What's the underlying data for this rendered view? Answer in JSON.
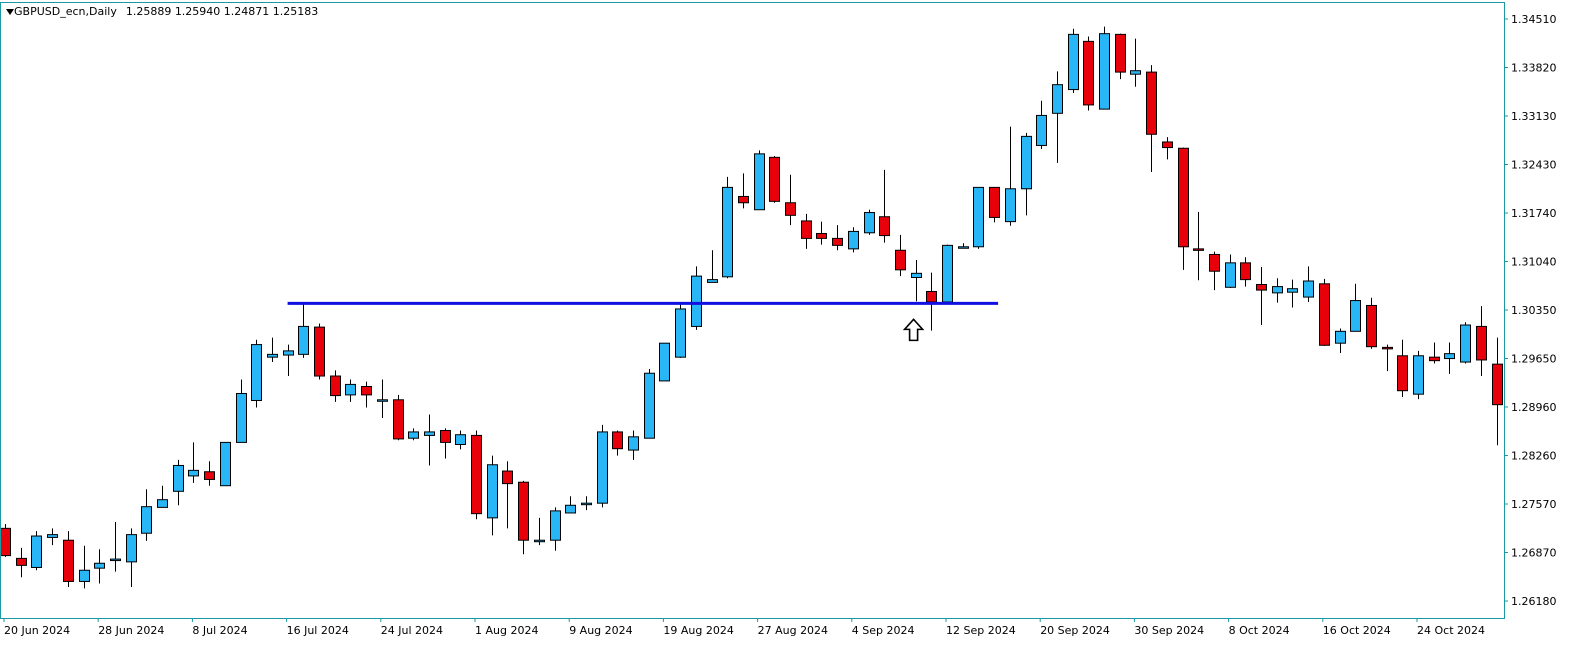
{
  "header": {
    "symbol": "GBPUSD_ecn,Daily",
    "ohlc": "1.25889 1.25940 1.24871 1.25183"
  },
  "colors": {
    "bull": "#29b6f6",
    "bear": "#e8000b",
    "wick": "#000000",
    "axis": "#1a9aa0",
    "level_line": "#1010e0",
    "background": "#ffffff"
  },
  "chart_data": {
    "type": "candlestick",
    "symbol": "GBPUSD_ecn",
    "timeframe": "Daily",
    "y_ticks": [
      "1.34510",
      "1.33820",
      "1.33130",
      "1.32430",
      "1.31740",
      "1.31040",
      "1.30350",
      "1.29650",
      "1.28960",
      "1.28260",
      "1.27570",
      "1.26870",
      "1.26180"
    ],
    "x_ticks": [
      "20 Jun 2024",
      "28 Jun 2024",
      "8 Jul 2024",
      "16 Jul 2024",
      "24 Jul 2024",
      "1 Aug 2024",
      "9 Aug 2024",
      "19 Aug 2024",
      "27 Aug 2024",
      "4 Sep 2024",
      "12 Sep 2024",
      "20 Sep 2024",
      "30 Sep 2024",
      "8 Oct 2024",
      "16 Oct 2024",
      "24 Oct 2024"
    ],
    "ylim": [
      1.2605,
      1.3465
    ],
    "horizontal_level": {
      "price": 1.3044,
      "from_index": 18,
      "to_index": 63
    },
    "arrow_marker": {
      "index": 58,
      "direction": "up"
    },
    "candles": [
      {
        "o": 1.2722,
        "h": 1.2728,
        "l": 1.2681,
        "c": 1.2683
      },
      {
        "o": 1.2679,
        "h": 1.2694,
        "l": 1.2652,
        "c": 1.2669
      },
      {
        "o": 1.2666,
        "h": 1.2718,
        "l": 1.2662,
        "c": 1.2711
      },
      {
        "o": 1.2709,
        "h": 1.2722,
        "l": 1.2698,
        "c": 1.2713
      },
      {
        "o": 1.2705,
        "h": 1.2718,
        "l": 1.2638,
        "c": 1.2646
      },
      {
        "o": 1.2646,
        "h": 1.2697,
        "l": 1.2636,
        "c": 1.2662
      },
      {
        "o": 1.2665,
        "h": 1.2692,
        "l": 1.2643,
        "c": 1.2672
      },
      {
        "o": 1.2677,
        "h": 1.2731,
        "l": 1.266,
        "c": 1.2678
      },
      {
        "o": 1.2674,
        "h": 1.2722,
        "l": 1.2638,
        "c": 1.2713
      },
      {
        "o": 1.2715,
        "h": 1.2778,
        "l": 1.2704,
        "c": 1.2753
      },
      {
        "o": 1.2752,
        "h": 1.2783,
        "l": 1.2752,
        "c": 1.2763
      },
      {
        "o": 1.2775,
        "h": 1.282,
        "l": 1.2755,
        "c": 1.2812
      },
      {
        "o": 1.2797,
        "h": 1.2845,
        "l": 1.2787,
        "c": 1.2805
      },
      {
        "o": 1.2803,
        "h": 1.2818,
        "l": 1.2783,
        "c": 1.2792
      },
      {
        "o": 1.2783,
        "h": 1.2845,
        "l": 1.2783,
        "c": 1.2845
      },
      {
        "o": 1.2845,
        "h": 1.2935,
        "l": 1.2845,
        "c": 1.2915
      },
      {
        "o": 1.2905,
        "h": 1.2992,
        "l": 1.2895,
        "c": 1.2985
      },
      {
        "o": 1.2967,
        "h": 1.2995,
        "l": 1.296,
        "c": 1.2971
      },
      {
        "o": 1.297,
        "h": 1.2985,
        "l": 1.294,
        "c": 1.2976
      },
      {
        "o": 1.2971,
        "h": 1.3046,
        "l": 1.2966,
        "c": 1.3011
      },
      {
        "o": 1.301,
        "h": 1.3015,
        "l": 1.2935,
        "c": 1.294
      },
      {
        "o": 1.294,
        "h": 1.2948,
        "l": 1.2903,
        "c": 1.2912
      },
      {
        "o": 1.2913,
        "h": 1.2935,
        "l": 1.2903,
        "c": 1.2928
      },
      {
        "o": 1.2925,
        "h": 1.2932,
        "l": 1.2895,
        "c": 1.2913
      },
      {
        "o": 1.2906,
        "h": 1.2935,
        "l": 1.288,
        "c": 1.2906
      },
      {
        "o": 1.2906,
        "h": 1.2913,
        "l": 1.2848,
        "c": 1.285
      },
      {
        "o": 1.2851,
        "h": 1.2865,
        "l": 1.2848,
        "c": 1.286
      },
      {
        "o": 1.2855,
        "h": 1.2885,
        "l": 1.2812,
        "c": 1.286
      },
      {
        "o": 1.2862,
        "h": 1.2865,
        "l": 1.2822,
        "c": 1.2845
      },
      {
        "o": 1.2842,
        "h": 1.2862,
        "l": 1.2835,
        "c": 1.2856
      },
      {
        "o": 1.2855,
        "h": 1.2862,
        "l": 1.2735,
        "c": 1.2743
      },
      {
        "o": 1.2737,
        "h": 1.2826,
        "l": 1.2712,
        "c": 1.2813
      },
      {
        "o": 1.2804,
        "h": 1.2818,
        "l": 1.2722,
        "c": 1.2786
      },
      {
        "o": 1.2788,
        "h": 1.279,
        "l": 1.2685,
        "c": 1.2705
      },
      {
        "o": 1.2705,
        "h": 1.2737,
        "l": 1.2698,
        "c": 1.2705
      },
      {
        "o": 1.2705,
        "h": 1.2752,
        "l": 1.269,
        "c": 1.2747
      },
      {
        "o": 1.2744,
        "h": 1.2768,
        "l": 1.2744,
        "c": 1.2755
      },
      {
        "o": 1.2758,
        "h": 1.2768,
        "l": 1.2748,
        "c": 1.2758
      },
      {
        "o": 1.2758,
        "h": 1.287,
        "l": 1.2752,
        "c": 1.286
      },
      {
        "o": 1.286,
        "h": 1.2862,
        "l": 1.2826,
        "c": 1.2836
      },
      {
        "o": 1.2834,
        "h": 1.2862,
        "l": 1.282,
        "c": 1.2853
      },
      {
        "o": 1.2851,
        "h": 1.295,
        "l": 1.2851,
        "c": 1.2944
      },
      {
        "o": 1.2933,
        "h": 1.2985,
        "l": 1.2933,
        "c": 1.2987
      },
      {
        "o": 1.2967,
        "h": 1.3044,
        "l": 1.2966,
        "c": 1.3036
      },
      {
        "o": 1.3011,
        "h": 1.3097,
        "l": 1.3006,
        "c": 1.3083
      },
      {
        "o": 1.3074,
        "h": 1.312,
        "l": 1.3074,
        "c": 1.3078
      },
      {
        "o": 1.3082,
        "h": 1.3225,
        "l": 1.308,
        "c": 1.321
      },
      {
        "o": 1.3197,
        "h": 1.323,
        "l": 1.318,
        "c": 1.3188
      },
      {
        "o": 1.3178,
        "h": 1.3263,
        "l": 1.3178,
        "c": 1.3258
      },
      {
        "o": 1.3253,
        "h": 1.3255,
        "l": 1.3188,
        "c": 1.319
      },
      {
        "o": 1.3188,
        "h": 1.3228,
        "l": 1.3156,
        "c": 1.317
      },
      {
        "o": 1.3162,
        "h": 1.3172,
        "l": 1.3122,
        "c": 1.3137
      },
      {
        "o": 1.3144,
        "h": 1.3161,
        "l": 1.3128,
        "c": 1.3137
      },
      {
        "o": 1.3137,
        "h": 1.3156,
        "l": 1.312,
        "c": 1.3127
      },
      {
        "o": 1.3122,
        "h": 1.3153,
        "l": 1.3117,
        "c": 1.3147
      },
      {
        "o": 1.3145,
        "h": 1.3178,
        "l": 1.3142,
        "c": 1.3174
      },
      {
        "o": 1.3168,
        "h": 1.3235,
        "l": 1.3131,
        "c": 1.3141
      },
      {
        "o": 1.312,
        "h": 1.3142,
        "l": 1.3083,
        "c": 1.3092
      },
      {
        "o": 1.3081,
        "h": 1.3106,
        "l": 1.3047,
        "c": 1.3087
      },
      {
        "o": 1.3061,
        "h": 1.3088,
        "l": 1.3005,
        "c": 1.3046
      },
      {
        "o": 1.3046,
        "h": 1.3128,
        "l": 1.3044,
        "c": 1.3127
      },
      {
        "o": 1.3124,
        "h": 1.313,
        "l": 1.3123,
        "c": 1.3125
      },
      {
        "o": 1.3125,
        "h": 1.321,
        "l": 1.3122,
        "c": 1.321
      },
      {
        "o": 1.321,
        "h": 1.321,
        "l": 1.316,
        "c": 1.3167
      },
      {
        "o": 1.3161,
        "h": 1.3297,
        "l": 1.3155,
        "c": 1.3208
      },
      {
        "o": 1.3208,
        "h": 1.3288,
        "l": 1.317,
        "c": 1.3283
      },
      {
        "o": 1.327,
        "h": 1.3334,
        "l": 1.3265,
        "c": 1.3313
      },
      {
        "o": 1.3316,
        "h": 1.3376,
        "l": 1.3245,
        "c": 1.3357
      },
      {
        "o": 1.335,
        "h": 1.3437,
        "l": 1.3345,
        "c": 1.3429
      },
      {
        "o": 1.3419,
        "h": 1.3426,
        "l": 1.332,
        "c": 1.3328
      },
      {
        "o": 1.3322,
        "h": 1.344,
        "l": 1.3322,
        "c": 1.343
      },
      {
        "o": 1.3429,
        "h": 1.343,
        "l": 1.3365,
        "c": 1.3375
      },
      {
        "o": 1.3372,
        "h": 1.3423,
        "l": 1.3354,
        "c": 1.3377
      },
      {
        "o": 1.3375,
        "h": 1.3385,
        "l": 1.3232,
        "c": 1.3286
      },
      {
        "o": 1.3275,
        "h": 1.3282,
        "l": 1.325,
        "c": 1.3267
      },
      {
        "o": 1.3266,
        "h": 1.3267,
        "l": 1.3092,
        "c": 1.3125
      },
      {
        "o": 1.3122,
        "h": 1.3175,
        "l": 1.3077,
        "c": 1.312
      },
      {
        "o": 1.3114,
        "h": 1.3118,
        "l": 1.3063,
        "c": 1.309
      },
      {
        "o": 1.3067,
        "h": 1.3114,
        "l": 1.3066,
        "c": 1.3102
      },
      {
        "o": 1.3102,
        "h": 1.311,
        "l": 1.3068,
        "c": 1.3078
      },
      {
        "o": 1.3071,
        "h": 1.3096,
        "l": 1.3013,
        "c": 1.3063
      },
      {
        "o": 1.3059,
        "h": 1.308,
        "l": 1.3045,
        "c": 1.3068
      },
      {
        "o": 1.306,
        "h": 1.3078,
        "l": 1.3038,
        "c": 1.3065
      },
      {
        "o": 1.3053,
        "h": 1.3097,
        "l": 1.3046,
        "c": 1.3076
      },
      {
        "o": 1.3072,
        "h": 1.3079,
        "l": 1.2983,
        "c": 1.2984
      },
      {
        "o": 1.2987,
        "h": 1.3008,
        "l": 1.2973,
        "c": 1.3004
      },
      {
        "o": 1.3004,
        "h": 1.3072,
        "l": 1.3004,
        "c": 1.3048
      },
      {
        "o": 1.3041,
        "h": 1.3052,
        "l": 1.2979,
        "c": 1.2982
      },
      {
        "o": 1.2981,
        "h": 1.2985,
        "l": 1.2947,
        "c": 1.298
      },
      {
        "o": 1.2969,
        "h": 1.2992,
        "l": 1.291,
        "c": 1.2919
      },
      {
        "o": 1.2914,
        "h": 1.2976,
        "l": 1.2907,
        "c": 1.2969
      },
      {
        "o": 1.2967,
        "h": 1.2988,
        "l": 1.2958,
        "c": 1.2962
      },
      {
        "o": 1.2965,
        "h": 1.2988,
        "l": 1.2943,
        "c": 1.2972
      },
      {
        "o": 1.296,
        "h": 1.3017,
        "l": 1.2958,
        "c": 1.3013
      },
      {
        "o": 1.3011,
        "h": 1.304,
        "l": 1.294,
        "c": 1.2963
      },
      {
        "o": 1.2957,
        "h": 1.2995,
        "l": 1.2841,
        "c": 1.2899
      }
    ]
  }
}
